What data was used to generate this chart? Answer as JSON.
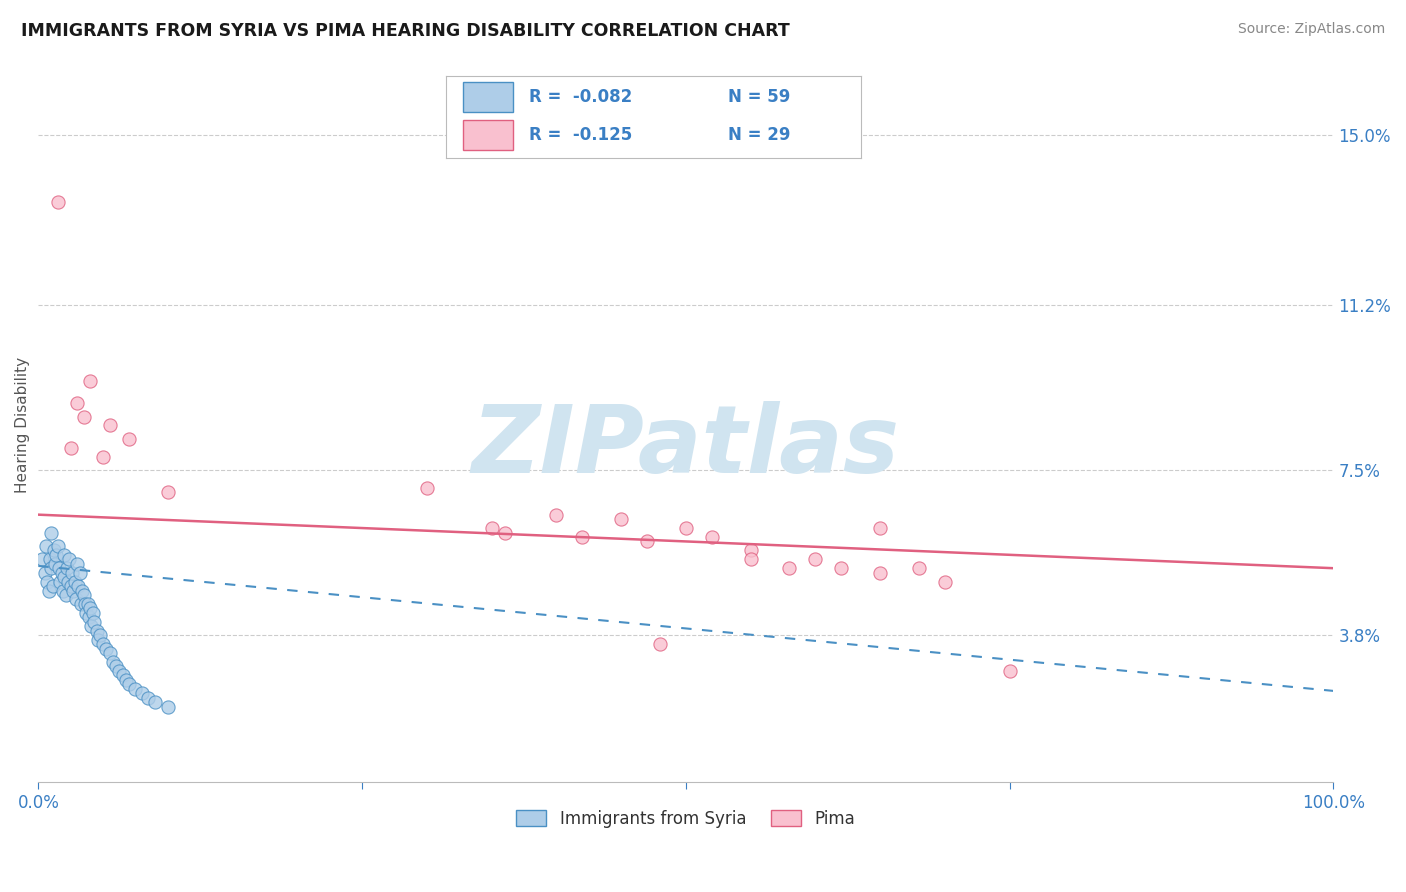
{
  "title": "IMMIGRANTS FROM SYRIA VS PIMA HEARING DISABILITY CORRELATION CHART",
  "source": "Source: ZipAtlas.com",
  "ylabel": "Hearing Disability",
  "xlim": [
    0.0,
    100.0
  ],
  "ylim": [
    0.5,
    16.5
  ],
  "yticks": [
    3.8,
    7.5,
    11.2,
    15.0
  ],
  "xticks": [
    0.0,
    25.0,
    50.0,
    75.0,
    100.0
  ],
  "legend_blue_r": "R =  -0.082",
  "legend_blue_n": "N = 59",
  "legend_pink_r": "R =  -0.125",
  "legend_pink_n": "N = 29",
  "legend_series1": "Immigrants from Syria",
  "legend_series2": "Pima",
  "blue_fill_color": "#aecde8",
  "blue_edge_color": "#4a90c4",
  "pink_fill_color": "#f9c0cf",
  "pink_edge_color": "#e06080",
  "blue_line_color": "#4a90c4",
  "pink_line_color": "#e06080",
  "text_blue_color": "#3a7fc4",
  "watermark_color": "#d0e4f0",
  "blue_scatter_x": [
    0.3,
    0.5,
    0.6,
    0.7,
    0.8,
    0.9,
    1.0,
    1.0,
    1.1,
    1.2,
    1.3,
    1.4,
    1.5,
    1.6,
    1.7,
    1.8,
    1.9,
    2.0,
    2.0,
    2.1,
    2.2,
    2.3,
    2.4,
    2.5,
    2.6,
    2.7,
    2.8,
    2.9,
    3.0,
    3.1,
    3.2,
    3.3,
    3.4,
    3.5,
    3.6,
    3.7,
    3.8,
    3.9,
    4.0,
    4.1,
    4.2,
    4.3,
    4.5,
    4.6,
    4.8,
    5.0,
    5.2,
    5.5,
    5.8,
    6.0,
    6.2,
    6.5,
    6.8,
    7.0,
    7.5,
    8.0,
    8.5,
    9.0,
    10.0
  ],
  "blue_scatter_y": [
    5.5,
    5.2,
    5.8,
    5.0,
    4.8,
    5.5,
    5.3,
    6.1,
    4.9,
    5.7,
    5.4,
    5.6,
    5.8,
    5.3,
    5.0,
    5.2,
    4.8,
    5.1,
    5.6,
    4.7,
    5.3,
    5.0,
    5.5,
    4.9,
    5.2,
    4.8,
    5.0,
    4.6,
    5.4,
    4.9,
    5.2,
    4.5,
    4.8,
    4.7,
    4.5,
    4.3,
    4.5,
    4.2,
    4.4,
    4.0,
    4.3,
    4.1,
    3.9,
    3.7,
    3.8,
    3.6,
    3.5,
    3.4,
    3.2,
    3.1,
    3.0,
    2.9,
    2.8,
    2.7,
    2.6,
    2.5,
    2.4,
    2.3,
    2.2
  ],
  "pink_scatter_x": [
    1.5,
    3.0,
    3.5,
    5.5,
    4.0,
    2.5,
    5.0,
    7.0,
    10.0,
    30.0,
    35.0,
    36.0,
    40.0,
    42.0,
    45.0,
    47.0,
    48.0,
    50.0,
    52.0,
    55.0,
    55.0,
    58.0,
    60.0,
    62.0,
    65.0,
    65.0,
    68.0,
    70.0,
    75.0
  ],
  "pink_scatter_y": [
    13.5,
    9.0,
    8.7,
    8.5,
    9.5,
    8.0,
    7.8,
    8.2,
    7.0,
    7.1,
    6.2,
    6.1,
    6.5,
    6.0,
    6.4,
    5.9,
    3.6,
    6.2,
    6.0,
    5.7,
    5.5,
    5.3,
    5.5,
    5.3,
    6.2,
    5.2,
    5.3,
    5.0,
    3.0
  ],
  "blue_trend_y_start": 5.35,
  "blue_trend_slope": -0.028,
  "pink_trend_y_start": 6.5,
  "pink_trend_slope": -0.012
}
